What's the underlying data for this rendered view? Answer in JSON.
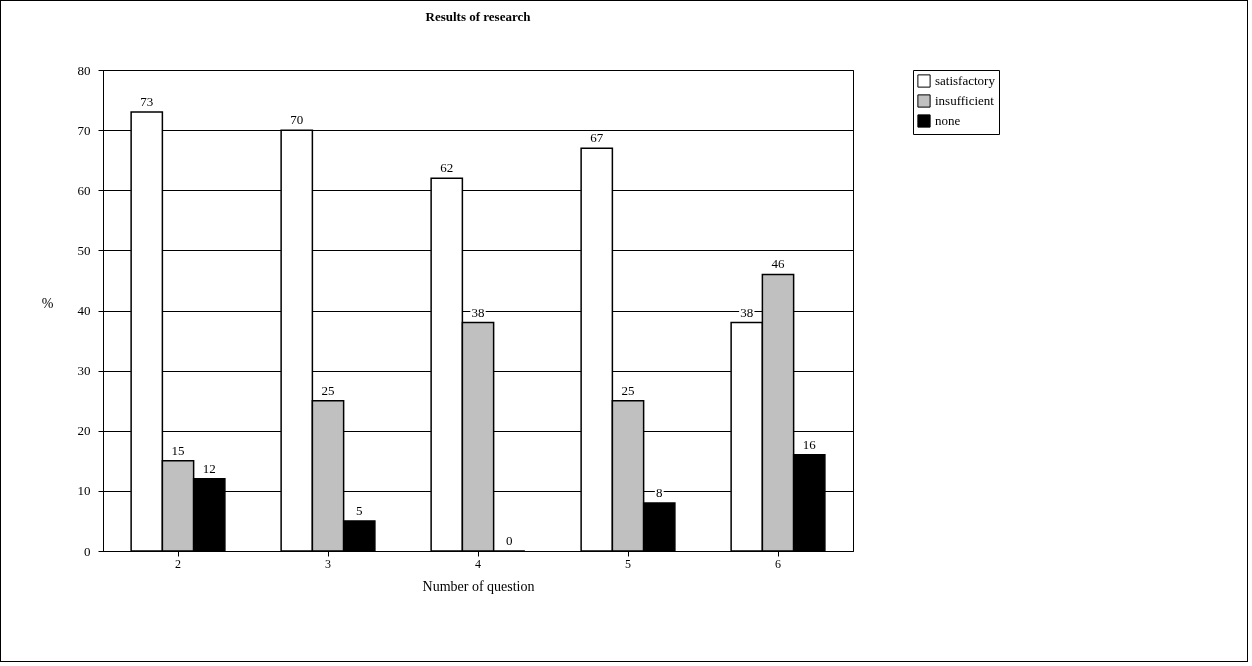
{
  "chart_data": {
    "type": "bar",
    "title": "Results of research",
    "xlabel": "Number of question",
    "ylabel": "%",
    "categories": [
      "2",
      "3",
      "4",
      "5",
      "6"
    ],
    "series": [
      {
        "name": "satisfactory",
        "color": "#ffffff",
        "values": [
          73,
          70,
          62,
          67,
          38
        ]
      },
      {
        "name": "insufficient",
        "color": "#c0c0c0",
        "values": [
          15,
          25,
          38,
          25,
          46
        ]
      },
      {
        "name": "none",
        "color": "#000000",
        "values": [
          12,
          5,
          0,
          8,
          16
        ]
      }
    ],
    "ylim": [
      0,
      80
    ],
    "yticks": [
      0,
      10,
      20,
      30,
      40,
      50,
      60,
      70,
      80
    ],
    "grid": "y",
    "legend": "right",
    "data_labels": true
  }
}
